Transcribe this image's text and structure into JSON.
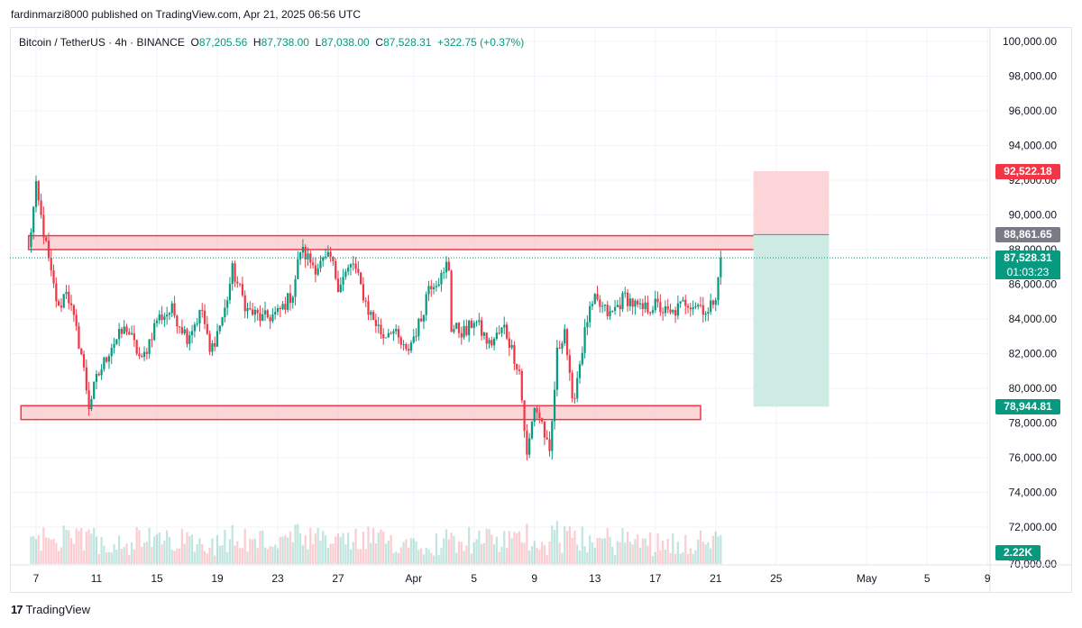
{
  "publisher_line": "fardinmarzi8000 published on TradingView.com, Apr 21, 2025 06:56 UTC",
  "legend": {
    "symbol": "Bitcoin / TetherUS · 4h · BINANCE",
    "o_key": "O",
    "o_val": "87,205.56",
    "h_key": "H",
    "h_val": "87,738.00",
    "l_key": "L",
    "l_val": "87,038.00",
    "c_key": "C",
    "c_val": "87,528.31",
    "change": "+322.75 (+0.37%)"
  },
  "price_labels": {
    "stop": "92,522.18",
    "entry": "88,861.65",
    "current": "87,528.31",
    "countdown": "01:03:23",
    "target": "78,944.81",
    "volume": "2.22K"
  },
  "footer": {
    "brand": "TradingView",
    "logo_glyph": "17"
  },
  "colors": {
    "up": "#089981",
    "down": "#f23645",
    "zone_fill": "#f8c5c9",
    "zone_border": "#f23645",
    "stop_fill": "#fcd5d8",
    "target_fill": "#cdeae3",
    "entry_label": "#787b86"
  },
  "chart_data": {
    "type": "candlestick",
    "title": "",
    "ylim": [
      70000,
      100500
    ],
    "y_ticks": [
      72000,
      74000,
      76000,
      78000,
      80000,
      82000,
      84000,
      86000,
      88000,
      90000,
      92000,
      94000,
      96000,
      98000,
      100000
    ],
    "y_tick_labels": [
      "72,000.00",
      "74,000.00",
      "76,000.00",
      "78,000.00",
      "80,000.00",
      "82,000.00",
      "84,000.00",
      "86,000.00",
      "88,000.00",
      "90,000.00",
      "92,000.00",
      "94,000.00",
      "96,000.00",
      "98,000.00",
      "100,000.00"
    ],
    "y_partial_label": "70,000.00",
    "x_range_days": [
      5.5,
      40.5
    ],
    "x_ticks": [
      {
        "day": 7,
        "label": "7"
      },
      {
        "day": 11,
        "label": "11"
      },
      {
        "day": 15,
        "label": "15"
      },
      {
        "day": 19,
        "label": "19"
      },
      {
        "day": 23,
        "label": "23"
      },
      {
        "day": 27,
        "label": "27"
      },
      {
        "day": 32,
        "label": "Apr"
      },
      {
        "day": 36,
        "label": "5"
      },
      {
        "day": 40,
        "label": "9"
      },
      {
        "day": 44,
        "label": "13"
      },
      {
        "day": 48,
        "label": "17"
      },
      {
        "day": 52,
        "label": "21"
      },
      {
        "day": 56,
        "label": "25"
      },
      {
        "day": 62,
        "label": "May"
      },
      {
        "day": 66,
        "label": "5"
      },
      {
        "day": 70,
        "label": "9"
      }
    ],
    "x_axis_start_day": 6.5,
    "x_axis_end_day": 71.5,
    "series_close_path": [
      [
        6.5,
        88000
      ],
      [
        7.0,
        91500
      ],
      [
        7.5,
        89000
      ],
      [
        8.0,
        86500
      ],
      [
        8.5,
        84500
      ],
      [
        9.0,
        85800
      ],
      [
        10.0,
        82000
      ],
      [
        10.5,
        79000
      ],
      [
        11.0,
        80500
      ],
      [
        12.0,
        82500
      ],
      [
        13.0,
        83500
      ],
      [
        14.0,
        81500
      ],
      [
        15.0,
        84000
      ],
      [
        16.0,
        84500
      ],
      [
        17.0,
        83000
      ],
      [
        18.0,
        84500
      ],
      [
        18.5,
        82000
      ],
      [
        19.5,
        84500
      ],
      [
        20.0,
        86800
      ],
      [
        21.0,
        84500
      ],
      [
        22.0,
        84000
      ],
      [
        23.0,
        84300
      ],
      [
        24.0,
        85500
      ],
      [
        24.5,
        88000
      ],
      [
        25.5,
        87000
      ],
      [
        26.5,
        87500
      ],
      [
        27.0,
        86000
      ],
      [
        28.0,
        87200
      ],
      [
        29.0,
        84500
      ],
      [
        30.0,
        83000
      ],
      [
        30.5,
        83500
      ],
      [
        31.5,
        82000
      ],
      [
        32.5,
        84000
      ],
      [
        33.0,
        86000
      ],
      [
        34.0,
        86500
      ],
      [
        34.3,
        87600
      ],
      [
        34.5,
        83500
      ],
      [
        35.5,
        83200
      ],
      [
        36.0,
        84000
      ],
      [
        37.0,
        82500
      ],
      [
        38.0,
        83500
      ],
      [
        39.0,
        81000
      ],
      [
        39.5,
        76000
      ],
      [
        40.0,
        79000
      ],
      [
        40.5,
        78000
      ],
      [
        41.0,
        76000
      ],
      [
        41.5,
        82000
      ],
      [
        42.0,
        83500
      ],
      [
        42.5,
        79000
      ],
      [
        43.0,
        81500
      ],
      [
        43.5,
        84000
      ],
      [
        44.0,
        85000
      ],
      [
        45.0,
        84200
      ],
      [
        46.0,
        85300
      ],
      [
        47.0,
        84500
      ],
      [
        48.0,
        84800
      ],
      [
        49.0,
        84200
      ],
      [
        50.0,
        85000
      ],
      [
        51.0,
        84800
      ],
      [
        51.5,
        84300
      ],
      [
        52.0,
        85500
      ],
      [
        52.3,
        87528
      ]
    ],
    "zones": [
      {
        "type": "resistance",
        "from_day": 6.5,
        "to_day": 57.0,
        "low": 88000,
        "high": 88800
      },
      {
        "type": "support",
        "from_day": 6.0,
        "to_day": 51.0,
        "low": 78200,
        "high": 79000
      }
    ],
    "position": {
      "from_day": 54.5,
      "to_day": 59.5,
      "stop": 92522.18,
      "entry": 88861.65,
      "target": 78944.81
    },
    "current_price": 87528.31,
    "current_volume": "2.22K"
  }
}
